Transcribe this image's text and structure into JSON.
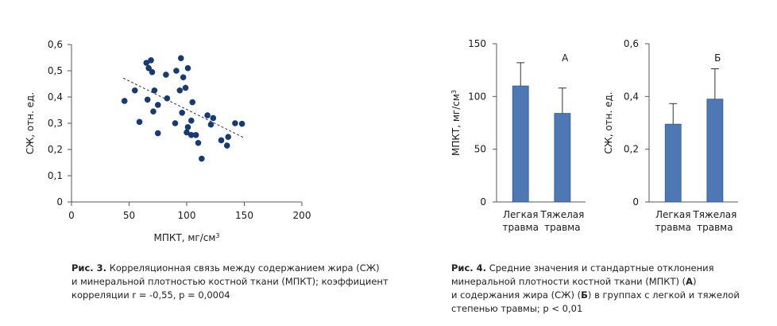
{
  "chart_data": [
    {
      "type": "scatter",
      "title": "",
      "xlabel": "МПКТ, мг/см",
      "xlabel_sup": "3",
      "ylabel": "СЖ, отн. ед.",
      "xlim": [
        0,
        200
      ],
      "ylim": [
        0,
        0.6
      ],
      "x_ticks": [
        "0",
        "50",
        "100",
        "150",
        "200"
      ],
      "y_ticks": [
        "0",
        "0,1",
        "0,2",
        "0,3",
        "0,4",
        "0,5",
        "0,6"
      ],
      "trendline": {
        "x": [
          45,
          150
        ],
        "y": [
          0.472,
          0.244
        ]
      },
      "points": [
        {
          "x": 46,
          "y": 0.385
        },
        {
          "x": 55,
          "y": 0.425
        },
        {
          "x": 59,
          "y": 0.305
        },
        {
          "x": 65,
          "y": 0.53
        },
        {
          "x": 67,
          "y": 0.51
        },
        {
          "x": 69,
          "y": 0.54
        },
        {
          "x": 70,
          "y": 0.495
        },
        {
          "x": 66,
          "y": 0.39
        },
        {
          "x": 71,
          "y": 0.345
        },
        {
          "x": 72,
          "y": 0.425
        },
        {
          "x": 75,
          "y": 0.37
        },
        {
          "x": 75,
          "y": 0.262
        },
        {
          "x": 82,
          "y": 0.485
        },
        {
          "x": 83,
          "y": 0.395
        },
        {
          "x": 91,
          "y": 0.5
        },
        {
          "x": 90,
          "y": 0.3
        },
        {
          "x": 94,
          "y": 0.425
        },
        {
          "x": 95,
          "y": 0.548
        },
        {
          "x": 96,
          "y": 0.34
        },
        {
          "x": 97,
          "y": 0.475
        },
        {
          "x": 99,
          "y": 0.435
        },
        {
          "x": 101,
          "y": 0.51
        },
        {
          "x": 100,
          "y": 0.265
        },
        {
          "x": 101,
          "y": 0.285
        },
        {
          "x": 104,
          "y": 0.255
        },
        {
          "x": 104,
          "y": 0.31
        },
        {
          "x": 105,
          "y": 0.38
        },
        {
          "x": 108,
          "y": 0.255
        },
        {
          "x": 110,
          "y": 0.225
        },
        {
          "x": 113,
          "y": 0.165
        },
        {
          "x": 118,
          "y": 0.33
        },
        {
          "x": 121,
          "y": 0.295
        },
        {
          "x": 123,
          "y": 0.32
        },
        {
          "x": 130,
          "y": 0.235
        },
        {
          "x": 135,
          "y": 0.215
        },
        {
          "x": 136,
          "y": 0.248
        },
        {
          "x": 142,
          "y": 0.3
        },
        {
          "x": 148,
          "y": 0.298
        }
      ]
    },
    {
      "type": "bar",
      "panel_label": "А",
      "ylabel": "МПКТ, мг/см",
      "ylabel_sup": "3",
      "ylim": [
        0,
        150
      ],
      "y_ticks": [
        "0",
        "50",
        "100",
        "150"
      ],
      "categories": [
        [
          "Легкая",
          "травма"
        ],
        [
          "Тяжелая",
          "травма"
        ]
      ],
      "values": [
        110,
        84
      ],
      "errors": [
        22,
        24
      ]
    },
    {
      "type": "bar",
      "panel_label": "Б",
      "ylabel": "СЖ, отн. ед.",
      "ylim": [
        0,
        0.6
      ],
      "y_ticks": [
        "0",
        "0,2",
        "0,4",
        "0,6"
      ],
      "categories": [
        [
          "Легкая",
          "травма"
        ],
        [
          "Тяжелая",
          "травма"
        ]
      ],
      "values": [
        0.295,
        0.39
      ],
      "errors": [
        0.078,
        0.115
      ]
    }
  ],
  "captions": {
    "fig3": {
      "label": "Рис. 3.",
      "lines": [
        " Корреляционная связь между содержанием жира (СЖ)",
        "и минеральной плотностью костной ткани (МПКТ); коэффициент",
        "корреляции r = -0,55, p = 0,0004"
      ]
    },
    "fig4": {
      "label": "Рис. 4.",
      "line1": " Средние значения и стандартные отклонения",
      "line2_a": "минеральной плотности костной ткани (МПКТ) (",
      "line2_b": "А",
      "line2_c": ")",
      "line3_a": "и содержания жира (СЖ) (",
      "line3_b": "Б",
      "line3_c": ") в группах с легкой и тяжелой",
      "line4": "степенью травмы; p < 0,01"
    }
  },
  "colors": {
    "bar": "#4d78b4",
    "bar_edge": "#2f5a93",
    "point": "#163a73",
    "axis": "#555555"
  }
}
